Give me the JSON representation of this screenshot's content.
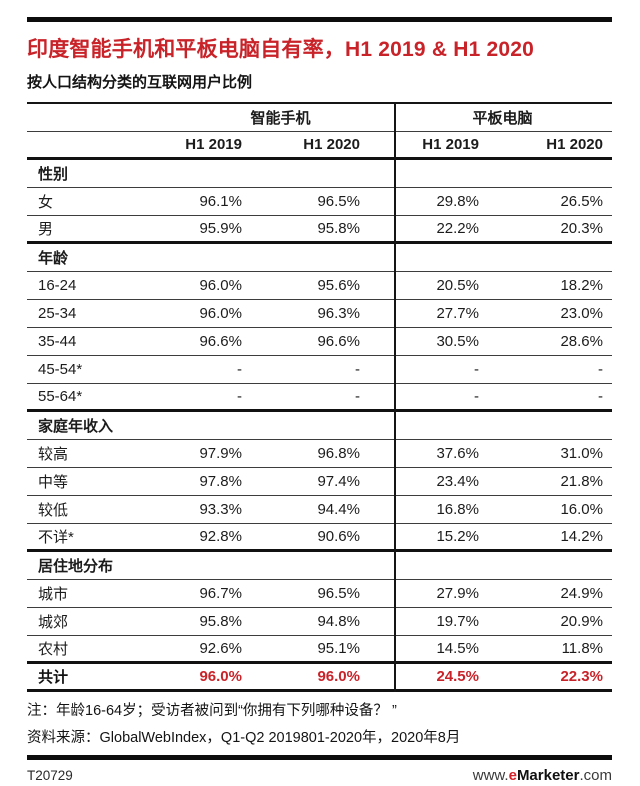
{
  "colors": {
    "accent_red": "#c9232a",
    "bar_black": "#0d0d0d"
  },
  "chart_data": {
    "type": "table",
    "title": "印度智能手机和平板电脑自有率，H1 2019 & H1 2020",
    "subtitle": "按人口结构分类的互联网用户比例",
    "column_groups": [
      "智能手机",
      "平板电脑"
    ],
    "columns": [
      "H1 2019",
      "H1 2020",
      "H1 2019",
      "H1 2020"
    ],
    "rows": [
      {
        "type": "group",
        "label": "性别"
      },
      {
        "type": "data",
        "label": "女",
        "values": [
          "96.1%",
          "96.5%",
          "29.8%",
          "26.5%"
        ]
      },
      {
        "type": "data",
        "label": "男",
        "values": [
          "95.9%",
          "95.8%",
          "22.2%",
          "20.3%"
        ]
      },
      {
        "type": "group",
        "label": "年龄"
      },
      {
        "type": "data",
        "label": "16-24",
        "values": [
          "96.0%",
          "95.6%",
          "20.5%",
          "18.2%"
        ]
      },
      {
        "type": "data",
        "label": "25-34",
        "values": [
          "96.0%",
          "96.3%",
          "27.7%",
          "23.0%"
        ]
      },
      {
        "type": "data",
        "label": "35-44",
        "values": [
          "96.6%",
          "96.6%",
          "30.5%",
          "28.6%"
        ]
      },
      {
        "type": "data",
        "label": "45-54*",
        "values": [
          "-",
          "-",
          "-",
          "-"
        ]
      },
      {
        "type": "data",
        "label": "55-64*",
        "values": [
          "-",
          "-",
          "-",
          "-"
        ]
      },
      {
        "type": "group",
        "label": "家庭年收入"
      },
      {
        "type": "data",
        "label": "较高",
        "values": [
          "97.9%",
          "96.8%",
          "37.6%",
          "31.0%"
        ]
      },
      {
        "type": "data",
        "label": "中等",
        "values": [
          "97.8%",
          "97.4%",
          "23.4%",
          "21.8%"
        ]
      },
      {
        "type": "data",
        "label": "较低",
        "values": [
          "93.3%",
          "94.4%",
          "16.8%",
          "16.0%"
        ]
      },
      {
        "type": "data",
        "label": "不详*",
        "values": [
          "92.8%",
          "90.6%",
          "15.2%",
          "14.2%"
        ]
      },
      {
        "type": "group",
        "label": "居住地分布"
      },
      {
        "type": "data",
        "label": "城市",
        "values": [
          "96.7%",
          "96.5%",
          "27.9%",
          "24.9%"
        ]
      },
      {
        "type": "data",
        "label": "城郊",
        "values": [
          "95.8%",
          "94.8%",
          "19.7%",
          "20.9%"
        ]
      },
      {
        "type": "data",
        "label": "农村",
        "values": [
          "92.6%",
          "95.1%",
          "14.5%",
          "11.8%"
        ]
      },
      {
        "type": "total",
        "label": "共计",
        "values": [
          "96.0%",
          "96.0%",
          "24.5%",
          "22.3%"
        ]
      }
    ]
  },
  "footnotes": {
    "note": "注：年龄16-64岁；受访者被问到“你拥有下列哪种设备？ ”",
    "source": "资料来源：GlobalWebIndex，Q1-Q2 2019801-2020年，2020年8月"
  },
  "footer": {
    "chart_id": "T20729",
    "url_prefix": "www.",
    "brand_e": "e",
    "brand_rest": "Marketer",
    "url_suffix": ".com"
  }
}
